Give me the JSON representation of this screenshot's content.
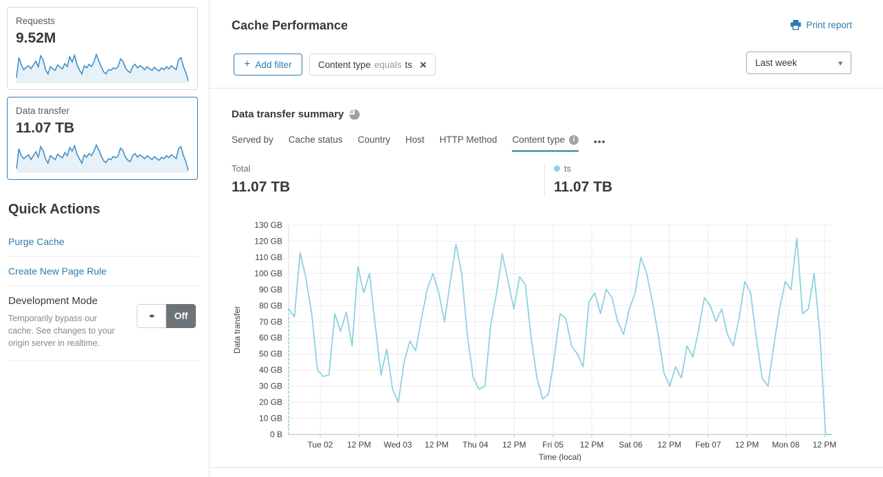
{
  "colors": {
    "accent_blue": "#2c7cb0",
    "selected_card_border": "#2f7bbf",
    "series_blue": "#8cd1e1",
    "sparkline_line": "#4390c4",
    "sparkline_fill": "#e7f1f8",
    "toggle_off_bg": "#6d7478",
    "grid_gray": "#ececec",
    "axis_gray": "#b9b9b9"
  },
  "icons": {
    "plus": "+",
    "close": "×",
    "caret_down": "▾",
    "toggle_arrows": "◂▸",
    "more": "•••",
    "info_glyph": "i"
  },
  "sidebar": {
    "cards": [
      {
        "label": "Requests",
        "value": "9.52M",
        "sparkline": [
          15,
          82,
          58,
          42,
          50,
          55,
          45,
          58,
          70,
          52,
          88,
          75,
          42,
          28,
          52,
          45,
          40,
          58,
          50,
          45,
          62,
          52,
          85,
          68,
          90,
          58,
          42,
          28,
          55,
          48,
          60,
          52,
          68,
          92,
          72,
          52,
          35,
          28,
          42,
          40,
          48,
          45,
          52,
          78,
          70,
          48,
          38,
          32,
          52,
          60,
          48,
          55,
          50,
          42,
          52,
          45,
          40,
          50,
          42,
          38,
          48,
          42,
          52,
          45,
          55,
          48,
          42,
          75,
          82,
          52,
          32,
          5
        ]
      },
      {
        "label": "Data transfer",
        "value": "11.07 TB",
        "sparkline": [
          12,
          78,
          55,
          45,
          52,
          58,
          42,
          55,
          68,
          50,
          85,
          72,
          45,
          30,
          55,
          48,
          42,
          60,
          52,
          48,
          65,
          55,
          82,
          70,
          88,
          60,
          45,
          30,
          58,
          50,
          62,
          55,
          70,
          90,
          75,
          55,
          38,
          32,
          45,
          42,
          52,
          48,
          55,
          80,
          72,
          50,
          40,
          35,
          55,
          62,
          50,
          58,
          52,
          45,
          55,
          48,
          42,
          52,
          45,
          40,
          50,
          45,
          55,
          48,
          58,
          52,
          45,
          78,
          85,
          55,
          35,
          6
        ]
      }
    ],
    "quick_actions": {
      "title": "Quick Actions",
      "links": [
        "Purge Cache",
        "Create New Page Rule"
      ],
      "development_mode": {
        "label": "Development Mode",
        "description": "Temporarily bypass our cache. See changes to your origin server in realtime.",
        "toggle_state": "Off"
      }
    }
  },
  "header": {
    "title": "Cache Performance",
    "print_report_label": "Print report"
  },
  "filters": {
    "add_filter_label": "Add filter",
    "active_filter": {
      "field": "Content type",
      "operator": "equals",
      "value": "ts"
    },
    "time_range": "Last week"
  },
  "summary": {
    "title": "Data transfer summary",
    "tabs": [
      {
        "label": "Served by"
      },
      {
        "label": "Cache status"
      },
      {
        "label": "Country"
      },
      {
        "label": "Host"
      },
      {
        "label": "HTTP Method"
      },
      {
        "label": "Content type"
      }
    ],
    "stats": {
      "total_label": "Total",
      "total_value": "11.07 TB",
      "series_label": "ts",
      "series_value": "11.07 TB"
    }
  },
  "chart_data": {
    "type": "line",
    "title": "Data transfer summary",
    "xlabel": "Time (local)",
    "ylabel": "Data transfer",
    "unit": "GB",
    "ylim": [
      0,
      130
    ],
    "grid": true,
    "y_ticks": [
      "130 GB",
      "120 GB",
      "110 GB",
      "100 GB",
      "90 GB",
      "80 GB",
      "70 GB",
      "60 GB",
      "50 GB",
      "40 GB",
      "30 GB",
      "20 GB",
      "10 GB",
      "0 B"
    ],
    "x_ticks": [
      "Tue 02",
      "12 PM",
      "Wed 03",
      "12 PM",
      "Thu 04",
      "12 PM",
      "Fri 05",
      "12 PM",
      "Sat 06",
      "12 PM",
      "Feb 07",
      "12 PM",
      "Mon 08",
      "12 PM"
    ],
    "leading_dashed_from_zero": true,
    "series": [
      {
        "name": "ts",
        "color": "#8cd1e1",
        "values": [
          78,
          73,
          113,
          97,
          75,
          40,
          36,
          37,
          75,
          64,
          76,
          55,
          104,
          88,
          100,
          68,
          37,
          53,
          28,
          20,
          45,
          58,
          52,
          72,
          90,
          100,
          88,
          70,
          95,
          118,
          99,
          60,
          35,
          28,
          30,
          68,
          88,
          112,
          95,
          78,
          98,
          93,
          60,
          35,
          22,
          25,
          48,
          75,
          72,
          55,
          50,
          42,
          82,
          88,
          75,
          90,
          85,
          70,
          62,
          78,
          88,
          110,
          100,
          82,
          62,
          38,
          30,
          42,
          35,
          55,
          48,
          65,
          85,
          80,
          70,
          78,
          62,
          55,
          72,
          95,
          88,
          60,
          35,
          30,
          55,
          78,
          95,
          90,
          122,
          75,
          78,
          100,
          62,
          0,
          0
        ]
      }
    ]
  }
}
